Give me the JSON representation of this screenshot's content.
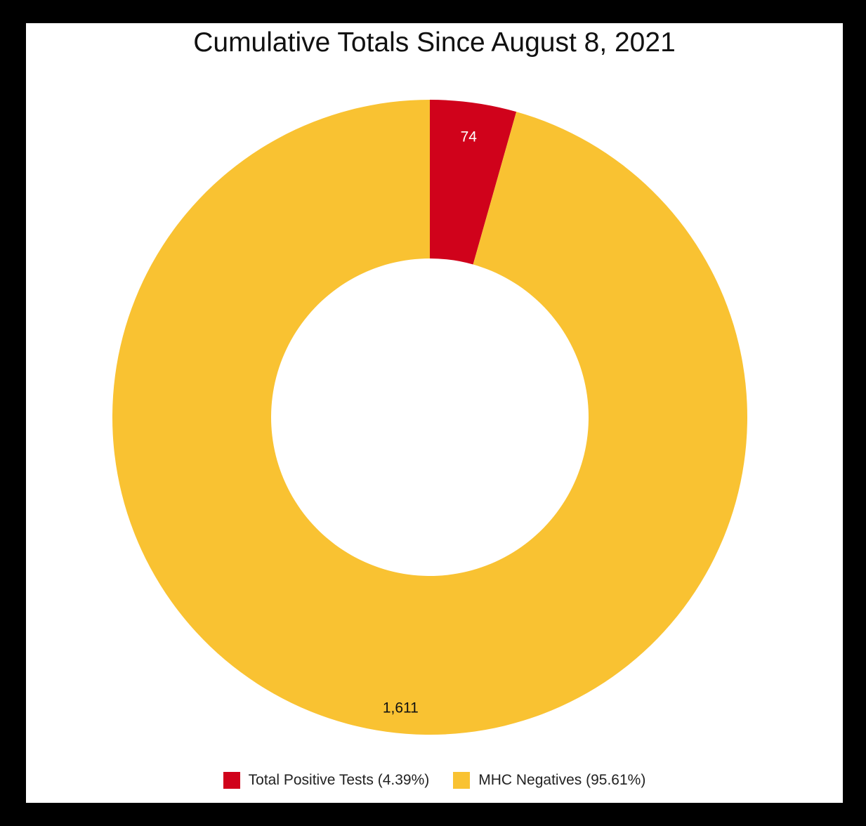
{
  "chart_data": {
    "type": "pie",
    "variant": "donut",
    "title": "Cumulative Totals Since August 8, 2021",
    "slices": [
      {
        "name": "Total Positive Tests",
        "value": 74,
        "label": "74",
        "percent_label": "4.39%",
        "color": "#d0021b",
        "label_color": "#ffffff"
      },
      {
        "name": "MHC Negatives",
        "value": 1611,
        "label": "1,611",
        "percent_label": "95.61%",
        "color": "#f9c232",
        "label_color": "#111111"
      }
    ],
    "legend": {
      "placement": "bottom",
      "items": [
        "Total Positive Tests (4.39%)",
        "MHC Negatives (95.61%)"
      ]
    }
  }
}
